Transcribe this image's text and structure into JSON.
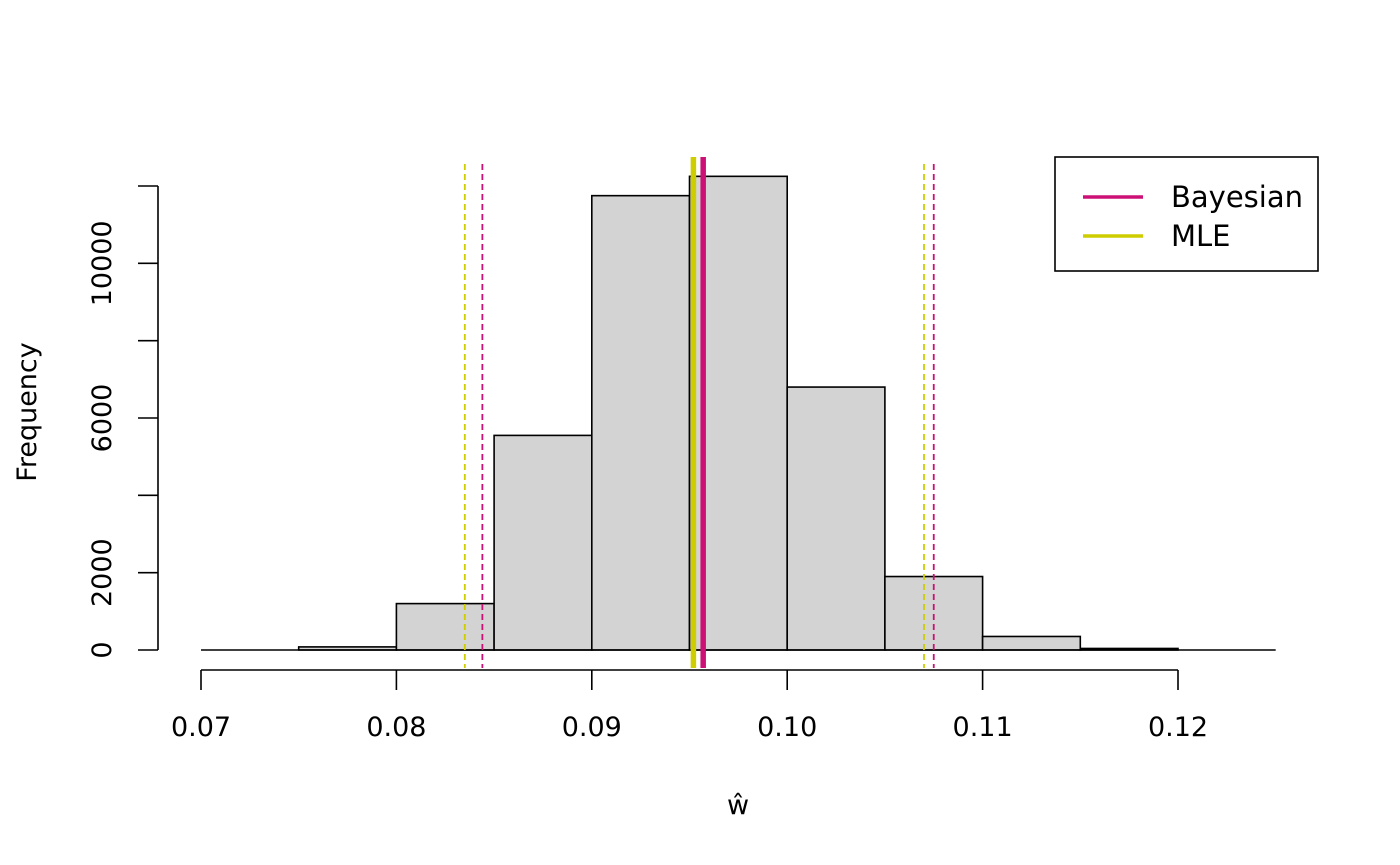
{
  "chart_data": {
    "type": "bar",
    "title": "",
    "xlabel": "ŵ",
    "ylabel": "Frequency",
    "xlim": [
      0.07,
      0.125
    ],
    "ylim": [
      0,
      12000
    ],
    "x_ticks": [
      "0.07",
      "0.08",
      "0.09",
      "0.10",
      "0.11",
      "0.12"
    ],
    "y_ticks": [
      "0",
      "2000",
      "6000",
      "10000"
    ],
    "bins": [
      {
        "start": 0.075,
        "end": 0.08,
        "count": 80
      },
      {
        "start": 0.08,
        "end": 0.085,
        "count": 1200
      },
      {
        "start": 0.085,
        "end": 0.09,
        "count": 5550
      },
      {
        "start": 0.09,
        "end": 0.095,
        "count": 11750
      },
      {
        "start": 0.095,
        "end": 0.1,
        "count": 12250
      },
      {
        "start": 0.1,
        "end": 0.105,
        "count": 6800
      },
      {
        "start": 0.105,
        "end": 0.11,
        "count": 1900
      },
      {
        "start": 0.11,
        "end": 0.115,
        "count": 350
      },
      {
        "start": 0.115,
        "end": 0.12,
        "count": 40
      }
    ],
    "series": [
      {
        "name": "Bayesian",
        "color": "#cd1076",
        "estimate": 0.0957,
        "interval": [
          0.0844,
          0.1075
        ]
      },
      {
        "name": "MLE",
        "color": "#cdcd00",
        "estimate": 0.0952,
        "interval": [
          0.0835,
          0.107
        ]
      }
    ],
    "bar_fill": "#d3d3d3",
    "legend_position": "top-right",
    "grid": false
  }
}
